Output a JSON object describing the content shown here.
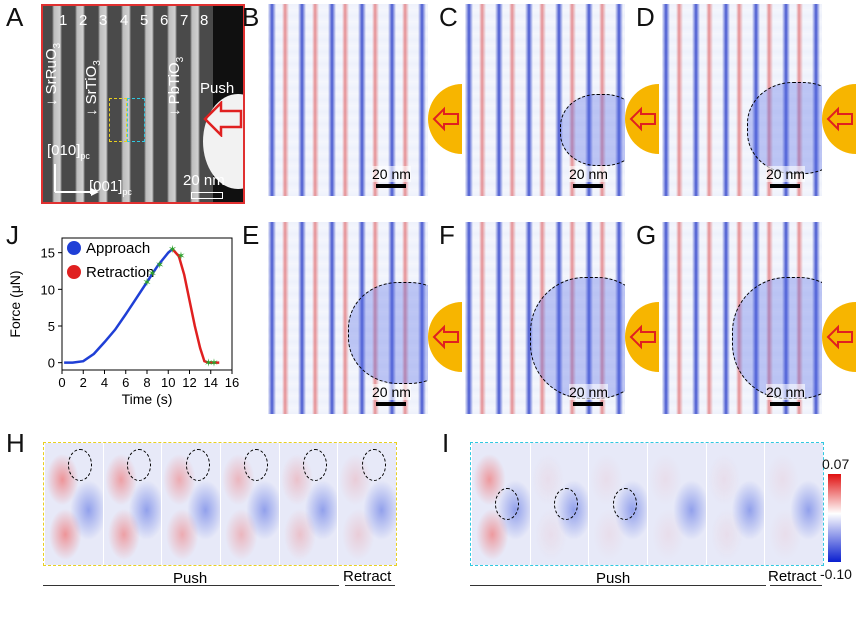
{
  "panel_labels": {
    "A": "A",
    "B": "B",
    "C": "C",
    "D": "D",
    "E": "E",
    "F": "F",
    "G": "G",
    "H": "H",
    "I": "I",
    "J": "J"
  },
  "stem": {
    "layer_numbers": [
      "1",
      "2",
      "3",
      "4",
      "5",
      "6",
      "7",
      "8"
    ],
    "srruo3": "SrRuO",
    "srtio3": "SrTiO",
    "pbtio3": "PbTiO",
    "sub3": "3",
    "push": "Push",
    "dir_y": "[010]",
    "dir_x": "[001]",
    "pc": "pc",
    "scale": "20 nm"
  },
  "scale_label": "20 nm",
  "colorbar": {
    "max": "0.07",
    "min": "-0.10"
  },
  "h_axis": {
    "push": "Push",
    "retract": "Retract"
  },
  "i_axis": {
    "push": "Push",
    "retract": "Retract"
  },
  "chart_data": {
    "type": "line",
    "xlabel": "Time (s)",
    "ylabel": "Force (μN)",
    "xlim": [
      0,
      16
    ],
    "ylim": [
      -1,
      17
    ],
    "xticks": [
      0,
      2,
      4,
      6,
      8,
      10,
      12,
      14,
      16
    ],
    "yticks": [
      0,
      5,
      10,
      15
    ],
    "legend": [
      "Approach",
      "Retraction"
    ],
    "series": [
      {
        "name": "Approach",
        "color": "#1f3fd6",
        "x": [
          0.2,
          1,
          2,
          3,
          4,
          5,
          6,
          7,
          8,
          9,
          10,
          10.4
        ],
        "y": [
          0,
          0,
          0.2,
          1.2,
          2.8,
          4.5,
          6.6,
          8.8,
          11.0,
          13.2,
          15.0,
          15.5
        ]
      },
      {
        "name": "Retraction",
        "color": "#e02020",
        "x": [
          10.4,
          11,
          11.5,
          12,
          12.5,
          13,
          13.4,
          13.8,
          14.2,
          14.8
        ],
        "y": [
          15.5,
          14.5,
          12.0,
          8.5,
          5.0,
          2.0,
          0.2,
          0,
          0,
          0
        ]
      }
    ],
    "markers_x": [
      8,
      8.5,
      9.2,
      10.4,
      11.2,
      13.8,
      14.3
    ],
    "markers_y": [
      11.0,
      12.2,
      13.4,
      15.5,
      14.6,
      0,
      0
    ]
  }
}
